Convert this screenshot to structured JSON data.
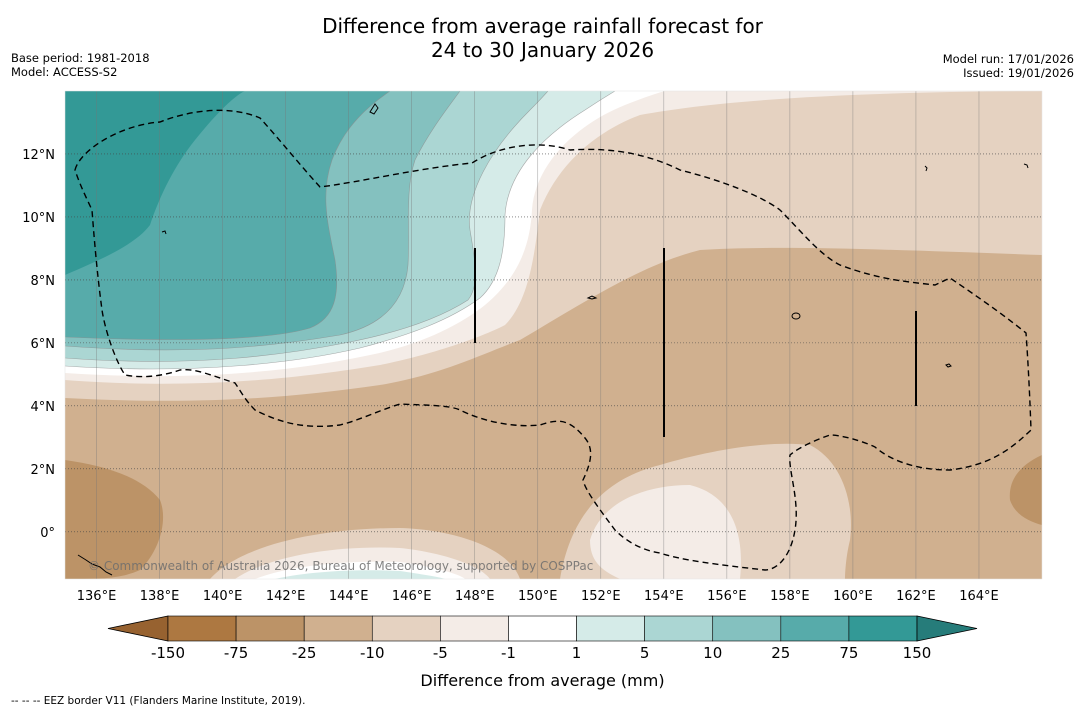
{
  "title": {
    "line1": "Difference from average rainfall forecast for",
    "line2": "24 to 30 January 2026"
  },
  "meta_left": {
    "base_period": "Base period: 1981-2018",
    "model": "Model: ACCESS-S2"
  },
  "meta_right": {
    "model_run": "Model run: 17/01/2026",
    "issued": "Issued: 19/01/2026"
  },
  "map": {
    "lon_range": [
      135,
      166
    ],
    "lat_range": [
      -1.5,
      14
    ],
    "x_ticks": [
      "136°E",
      "138°E",
      "140°E",
      "142°E",
      "144°E",
      "146°E",
      "148°E",
      "150°E",
      "152°E",
      "154°E",
      "156°E",
      "158°E",
      "160°E",
      "162°E",
      "164°E"
    ],
    "x_tick_values": [
      136,
      138,
      140,
      142,
      144,
      146,
      148,
      150,
      152,
      154,
      156,
      158,
      160,
      162,
      164
    ],
    "y_ticks": [
      "12°N",
      "10°N",
      "8°N",
      "6°N",
      "4°N",
      "2°N",
      "0°"
    ],
    "y_tick_values": [
      12,
      10,
      8,
      6,
      4,
      2,
      0
    ],
    "copyright": "© Commonwealth of Australia 2026, Bureau of Meteorology, supported by COSPPac"
  },
  "colorbar": {
    "labels": [
      "-150",
      "-75",
      "-25",
      "-10",
      "-5",
      "-1",
      "1",
      "5",
      "10",
      "25",
      "75",
      "150"
    ],
    "colors": [
      "#ad7841",
      "#bc9367",
      "#d0b08f",
      "#e5d2c1",
      "#f4ece7",
      "#ffffff",
      "#d5ebe8",
      "#abd6d3",
      "#84c1bf",
      "#57abaa",
      "#339996"
    ],
    "under_color": "#976230",
    "over_color": "#267c7a",
    "label": "Difference from average (mm)"
  },
  "footnote": "--  --  -- EEZ border V11 (Flanders Marine Institute, 2019)."
}
